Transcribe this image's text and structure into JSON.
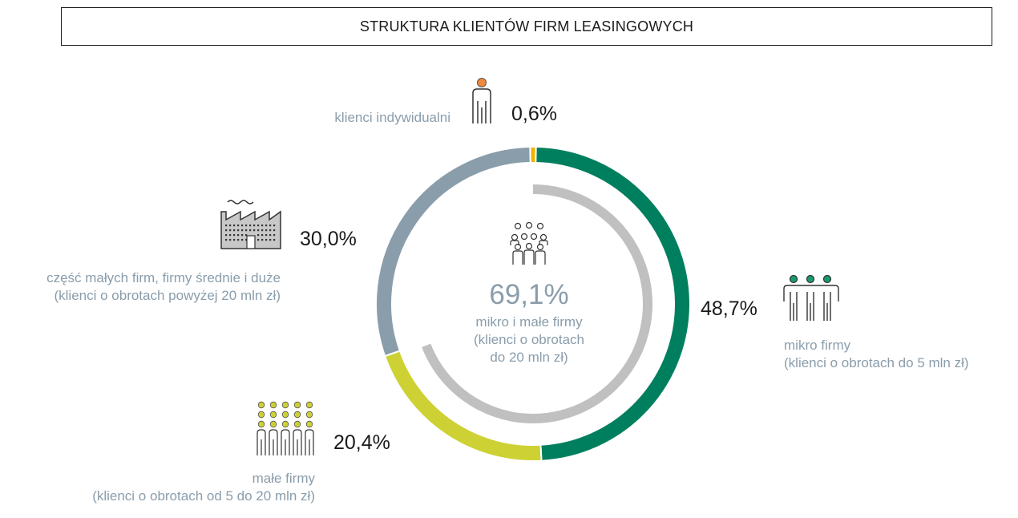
{
  "title": "STRUKTURA KLIENTÓW FIRM LEASINGOWYCH",
  "center": {
    "value_label": "69,1%",
    "label_line1": "mikro i małe firmy",
    "label_line2": "(klienci o obrotach",
    "label_line3": "do 20 mln zł)"
  },
  "segments_text": {
    "indywidualni": {
      "pct": "0,6%",
      "line1": "klienci indywidualni"
    },
    "mikro": {
      "pct": "48,7%",
      "line1": "mikro firmy",
      "line2": "(klienci o obrotach do 5 mln zł)"
    },
    "male": {
      "pct": "20,4%",
      "line1": "małe firmy",
      "line2": "(klienci o obrotach od 5 do 20 mln zł)"
    },
    "duze": {
      "pct": "30,0%",
      "line1": "część małych firm, firmy średnie i duże",
      "line2": "(klienci o obrotach powyżej 20 mln zł)"
    }
  },
  "colors": {
    "indywidualni": "#f0b400",
    "mikro": "#007f5f",
    "male": "#cdd133",
    "duze": "#8a9dab",
    "inner": "#c0c0c0",
    "label": "#8a9dab"
  },
  "chart_data": {
    "type": "pie",
    "title": "STRUKTURA KLIENTÓW FIRM LEASINGOWYCH",
    "categories": [
      "klienci indywidualni",
      "mikro firmy",
      "małe firmy",
      "część małych firm, firmy średnie i duże"
    ],
    "values": [
      0.6,
      48.7,
      20.4,
      30.0
    ],
    "inner_ring": {
      "label": "mikro i małe firmy",
      "value": 69.1
    }
  }
}
